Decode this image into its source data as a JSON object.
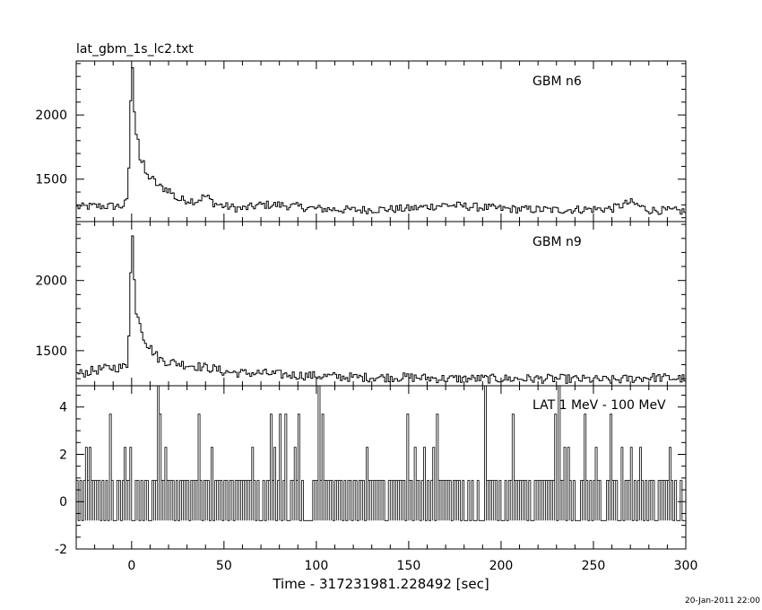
{
  "page": {
    "title": "lat_gbm_1s_lc2.txt",
    "timestamp": "20-Jan-2011 22:00"
  },
  "chart_data": [
    {
      "type": "line",
      "panel": "top",
      "label": "GBM n6",
      "xlim": [
        -30,
        300
      ],
      "ylim": [
        1170,
        2420
      ],
      "yticks_major": [
        1500,
        2000
      ],
      "yticks_minor_step": 100,
      "series": [
        {
          "style": "histogram",
          "x": [
            -30,
            -20,
            -10,
            -5,
            -2,
            0,
            1,
            2,
            3,
            4,
            5,
            6,
            8,
            10,
            15,
            20,
            25,
            30,
            35,
            40,
            45,
            50,
            60,
            70,
            80,
            100,
            120,
            150,
            170,
            200,
            230,
            260,
            270,
            280,
            300
          ],
          "y": [
            1280,
            1290,
            1290,
            1290,
            1330,
            2380,
            2300,
            1800,
            1950,
            1700,
            1620,
            1640,
            1520,
            1520,
            1440,
            1420,
            1340,
            1340,
            1330,
            1370,
            1310,
            1290,
            1270,
            1300,
            1300,
            1270,
            1260,
            1270,
            1300,
            1270,
            1260,
            1270,
            1320,
            1260,
            1250
          ]
        }
      ]
    },
    {
      "type": "line",
      "panel": "middle",
      "label": "GBM n9",
      "xlim": [
        -30,
        300
      ],
      "ylim": [
        1250,
        2420
      ],
      "yticks_major": [
        1500,
        2000
      ],
      "yticks_minor_step": 100,
      "series": [
        {
          "style": "histogram",
          "x": [
            -30,
            -20,
            -10,
            -5,
            -2,
            0,
            1,
            2,
            3,
            4,
            5,
            6,
            8,
            10,
            15,
            20,
            25,
            30,
            35,
            40,
            45,
            50,
            60,
            70,
            80,
            100,
            120,
            150,
            170,
            200,
            230,
            260,
            270,
            280,
            300
          ],
          "y": [
            1330,
            1360,
            1380,
            1380,
            1400,
            2320,
            2300,
            1700,
            1800,
            1740,
            1680,
            1620,
            1560,
            1520,
            1440,
            1420,
            1410,
            1400,
            1390,
            1380,
            1370,
            1350,
            1340,
            1340,
            1330,
            1320,
            1310,
            1310,
            1300,
            1300,
            1300,
            1290,
            1300,
            1310,
            1300
          ]
        }
      ]
    },
    {
      "type": "line",
      "panel": "bottom",
      "label": "LAT 1 MeV - 100 MeV",
      "xlabel": "Time - 317231981.228492 [sec]",
      "xlim": [
        -30,
        300
      ],
      "ylim": [
        -2,
        4.9
      ],
      "yticks_major": [
        -2,
        0,
        2,
        4
      ],
      "yticks_minor_step": 0.5,
      "xticks_major": [
        0,
        50,
        100,
        150,
        200,
        250,
        300
      ],
      "xticks_minor_step": 10,
      "series": [
        {
          "style": "spikes",
          "levels": [
            -0.8,
            0.9,
            2.3,
            3.7,
            4.9
          ],
          "x_high": [
            -23,
            -12,
            -4,
            14,
            15,
            18,
            36,
            43,
            65,
            75,
            77,
            80,
            83,
            88,
            90,
            101,
            103,
            127,
            149,
            158,
            163,
            165,
            191,
            206,
            229,
            231,
            245,
            251,
            259,
            270
          ],
          "y_high": [
            2.3,
            3.7,
            2.3,
            4.9,
            3.7,
            2.3,
            3.7,
            2.3,
            2.3,
            3.7,
            2.3,
            3.7,
            3.7,
            2.3,
            3.7,
            4.9,
            3.7,
            2.3,
            3.7,
            2.3,
            2.3,
            3.7,
            4.9,
            3.7,
            3.7,
            4.9,
            3.7,
            2.3,
            3.7,
            2.3
          ]
        }
      ]
    }
  ]
}
